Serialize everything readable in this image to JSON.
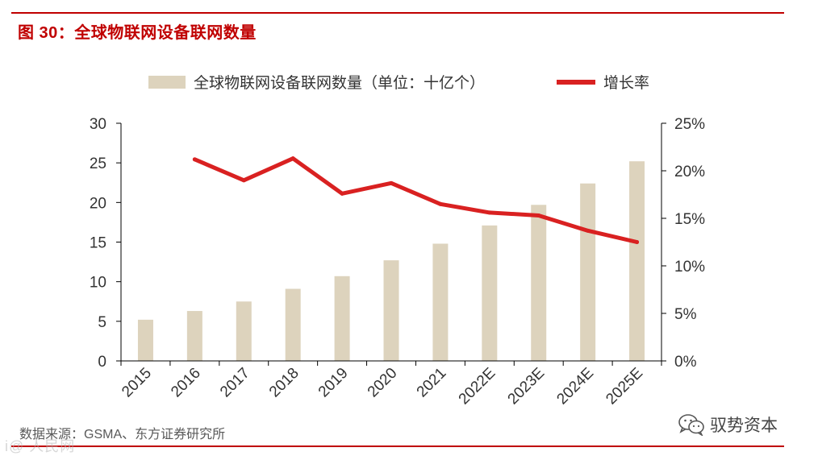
{
  "figure_title": "图 30：全球物联网设备联网数量",
  "source_note": "数据来源：GSMA、东方证券研究所",
  "watermark_brand": "驭势资本",
  "watermark_corner": "i@ 人民网",
  "colors": {
    "accent": "#c00000",
    "bar": "#ddd3bd",
    "line": "#d92121",
    "axis": "#000000",
    "text": "#333333"
  },
  "icons": {
    "brand": "wechat-icon"
  },
  "chart_data": {
    "type": "bar",
    "categories": [
      "2015",
      "2016",
      "2017",
      "2018",
      "2019",
      "2020",
      "2021",
      "2022E",
      "2023E",
      "2024E",
      "2025E"
    ],
    "series": [
      {
        "name": "全球物联网设备联网数量（单位：十亿个）",
        "kind": "bar",
        "axis": "left",
        "values": [
          5.2,
          6.3,
          7.5,
          9.1,
          10.7,
          12.7,
          14.8,
          17.1,
          19.7,
          22.4,
          25.2
        ]
      },
      {
        "name": "增长率",
        "kind": "line",
        "axis": "right",
        "values": [
          null,
          21.2,
          19.0,
          21.3,
          17.6,
          18.7,
          16.5,
          15.6,
          15.3,
          13.7,
          12.5
        ]
      }
    ],
    "ylim_left": [
      0,
      30
    ],
    "yticks_left": [
      "0",
      "5",
      "10",
      "15",
      "20",
      "25",
      "30"
    ],
    "ylim_right": [
      0,
      25
    ],
    "yticks_right": [
      "0%",
      "5%",
      "10%",
      "15%",
      "20%",
      "25%"
    ],
    "grid": false,
    "legend_position": "top"
  }
}
